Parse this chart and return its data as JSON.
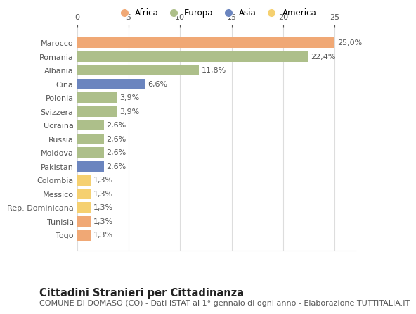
{
  "countries": [
    "Marocco",
    "Romania",
    "Albania",
    "Cina",
    "Polonia",
    "Svizzera",
    "Ucraina",
    "Russia",
    "Moldova",
    "Pakistan",
    "Colombia",
    "Messico",
    "Rep. Dominicana",
    "Tunisia",
    "Togo"
  ],
  "values": [
    25.0,
    22.4,
    11.8,
    6.6,
    3.9,
    3.9,
    2.6,
    2.6,
    2.6,
    2.6,
    1.3,
    1.3,
    1.3,
    1.3,
    1.3
  ],
  "labels": [
    "25,0%",
    "22,4%",
    "11,8%",
    "6,6%",
    "3,9%",
    "3,9%",
    "2,6%",
    "2,6%",
    "2,6%",
    "2,6%",
    "1,3%",
    "1,3%",
    "1,3%",
    "1,3%",
    "1,3%"
  ],
  "continents": [
    "Africa",
    "Europa",
    "Europa",
    "Asia",
    "Europa",
    "Europa",
    "Europa",
    "Europa",
    "Europa",
    "Asia",
    "America",
    "America",
    "America",
    "Africa",
    "Africa"
  ],
  "colors": {
    "Africa": "#F0A875",
    "Europa": "#ADBF8A",
    "Asia": "#6B85BF",
    "America": "#F5D070"
  },
  "legend_order": [
    "Africa",
    "Europa",
    "Asia",
    "America"
  ],
  "title": "Cittadini Stranieri per Cittadinanza",
  "subtitle": "COMUNE DI DOMASO (CO) - Dati ISTAT al 1° gennaio di ogni anno - Elaborazione TUTTITALIA.IT",
  "xlim": [
    0,
    27
  ],
  "xticks": [
    0,
    5,
    10,
    15,
    20,
    25
  ],
  "background_color": "#ffffff",
  "grid_color": "#dddddd",
  "title_fontsize": 10.5,
  "subtitle_fontsize": 8,
  "label_fontsize": 8,
  "tick_fontsize": 8
}
